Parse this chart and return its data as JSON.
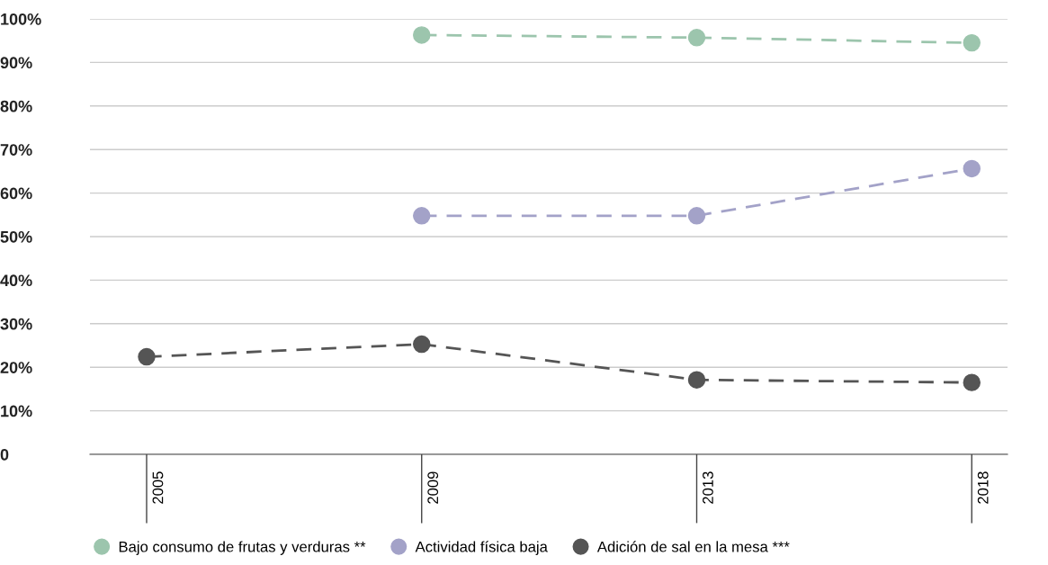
{
  "chart_data": {
    "type": "line",
    "categories": [
      "2005",
      "2009",
      "2013",
      "2018"
    ],
    "series": [
      {
        "name": "Bajo consumo de frutas y verduras **",
        "color": "#9cc5ad",
        "values": [
          null,
          96.3,
          95.7,
          94.5
        ]
      },
      {
        "name": "Actividad física baja",
        "color": "#a3a2c8",
        "values": [
          null,
          54.8,
          54.8,
          65.6
        ]
      },
      {
        "name": "Adición de sal en la mesa ***",
        "color": "#555555",
        "values": [
          22.4,
          25.3,
          17.1,
          16.5
        ]
      }
    ],
    "ylim": [
      0,
      100
    ],
    "yticks": [
      0,
      {
        "value": 10,
        "label": "10%"
      },
      {
        "value": 20,
        "label": "20%"
      },
      {
        "value": 30,
        "label": "30%"
      },
      {
        "value": 40,
        "label": "40%"
      },
      {
        "value": 50,
        "label": "50%"
      },
      {
        "value": 60,
        "label": "60%"
      },
      {
        "value": 70,
        "label": "70%"
      },
      {
        "value": 80,
        "label": "80%"
      },
      {
        "value": 90,
        "label": "90%"
      },
      {
        "value": 100,
        "label": "100%"
      }
    ],
    "grid": "y",
    "legend": "bottom left",
    "marker": "circle",
    "line_style": "dashed"
  }
}
